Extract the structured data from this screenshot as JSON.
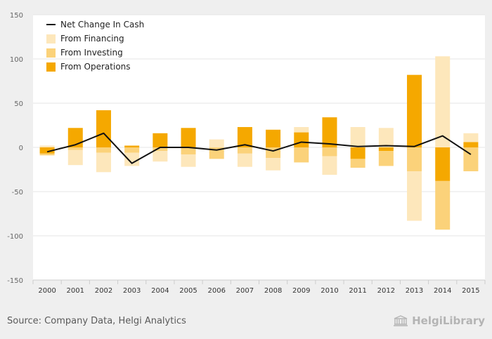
{
  "chart_data": {
    "type": "bar",
    "stacked": true,
    "categories": [
      "2000",
      "2001",
      "2002",
      "2003",
      "2004",
      "2005",
      "2006",
      "2007",
      "2008",
      "2009",
      "2010",
      "2011",
      "2012",
      "2013",
      "2014",
      "2015"
    ],
    "series": [
      {
        "name": "From Operations",
        "color": "#f5a800",
        "values": [
          -7,
          22,
          42,
          2,
          16,
          22,
          0,
          23,
          20,
          17,
          34,
          -13,
          -4,
          82,
          -38,
          6
        ]
      },
      {
        "name": "From Investing",
        "color": "#fbd27a",
        "values": [
          -2,
          -3,
          -6,
          -6,
          -4,
          -8,
          -13,
          -7,
          -12,
          -17,
          -10,
          -10,
          -17,
          -27,
          -55,
          -27
        ]
      },
      {
        "name": "From Financing",
        "color": "#fde7bb",
        "values": [
          2,
          -17,
          -22,
          -15,
          -12,
          -14,
          9,
          -15,
          -14,
          6,
          -21,
          23,
          22,
          -56,
          103,
          10
        ]
      },
      {
        "name": "Net Change In Cash",
        "type": "line",
        "color": "#111111",
        "values": [
          -5,
          3,
          16,
          -18,
          0,
          0,
          -3,
          3,
          -4,
          6,
          4,
          1,
          2,
          1,
          13,
          -8
        ]
      }
    ],
    "yticks": [
      "150",
      "100",
      "50",
      "0",
      "-50",
      "-100",
      "-150"
    ],
    "ylim": [
      -150,
      150
    ],
    "grid": true,
    "legend": {
      "position": "top-left"
    }
  },
  "footer": {
    "source": "Source: Company Data, Helgi Analytics",
    "brand": "HelgiLibrary"
  },
  "icons": {
    "brand": "library-building-icon"
  }
}
